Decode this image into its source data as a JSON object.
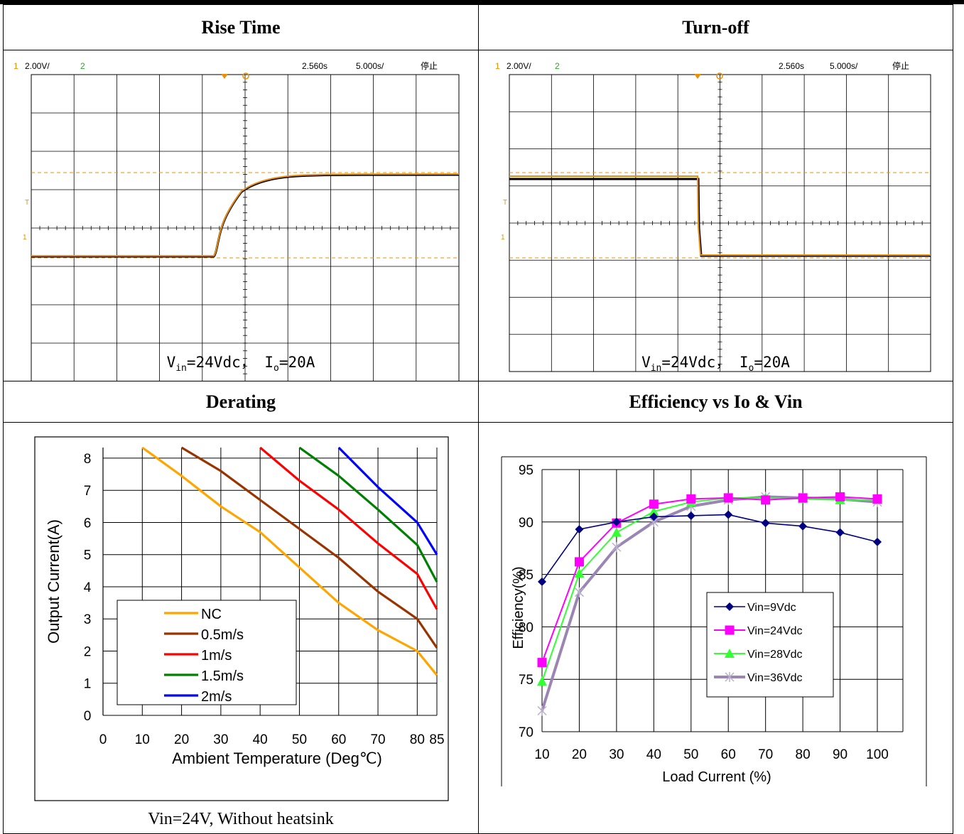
{
  "headers": {
    "rise_time": "Rise Time",
    "turn_off": "Turn-off",
    "derating": "Derating",
    "efficiency": "Efficiency vs Io & Vin"
  },
  "scope": {
    "ch1_label": "1",
    "ch1_scale": "2.00V/",
    "ch2_label": "2",
    "time_offset": "2.560s",
    "time_scale": "5.000s/",
    "status": "停止",
    "trigger_marker": "T",
    "ground_marker": "1"
  },
  "rise_caption": {
    "v": "V",
    "v_sub": "in",
    "v_val": "=24Vdc， I",
    "i_sub": "o",
    "i_val": "=20A"
  },
  "off_caption": {
    "v": "V",
    "v_sub": "in",
    "v_val": "=24Vdc， I",
    "i_sub": "o",
    "i_val": "=20A"
  },
  "derating_caption": "Vin=24V, Without heatsink",
  "colors": {
    "trace_orange": "#e8900a",
    "nc": "#ffa500",
    "s05": "#993300",
    "s1": "#ff0000",
    "s15": "#008000",
    "s2": "#0000ff",
    "v9": "#000080",
    "v24": "#ff00ff",
    "v28": "#33ff33",
    "v36": "#9a85b5"
  },
  "chart_data": [
    {
      "type": "line",
      "title": "Derating",
      "xlabel": "Ambient Temperature (Deg℃)",
      "ylabel": "Output Current(A)",
      "x_ticks": [
        0,
        10,
        20,
        30,
        40,
        50,
        60,
        70,
        80,
        85
      ],
      "y_ticks": [
        0,
        1,
        2,
        3,
        4,
        5,
        6,
        7,
        8
      ],
      "xlim": [
        0,
        85
      ],
      "ylim": [
        0,
        8.33
      ],
      "grid": true,
      "legend": "bottom-left",
      "series": [
        {
          "name": "NC",
          "x": [
            10,
            20,
            30,
            40,
            50,
            60,
            70,
            80,
            85
          ],
          "y": [
            8.33,
            7.45,
            6.5,
            5.7,
            4.6,
            3.5,
            2.65,
            2.0,
            1.25
          ]
        },
        {
          "name": "0.5m/s",
          "x": [
            20,
            30,
            40,
            50,
            60,
            70,
            80,
            85
          ],
          "y": [
            8.33,
            7.6,
            6.7,
            5.8,
            4.9,
            3.85,
            3.0,
            2.1
          ]
        },
        {
          "name": "1m/s",
          "x": [
            40,
            50,
            60,
            70,
            80,
            85
          ],
          "y": [
            8.33,
            7.3,
            6.4,
            5.35,
            4.4,
            3.3
          ]
        },
        {
          "name": "1.5m/s",
          "x": [
            50,
            60,
            70,
            80,
            85
          ],
          "y": [
            8.33,
            7.45,
            6.4,
            5.3,
            4.15
          ]
        },
        {
          "name": "2m/s",
          "x": [
            60,
            70,
            80,
            85
          ],
          "y": [
            8.33,
            7.1,
            6.0,
            5.0
          ]
        }
      ]
    },
    {
      "type": "line",
      "title": "Efficiency vs Io & Vin",
      "xlabel": "Load Current (%)",
      "ylabel": "Efficiency(%)",
      "x": [
        10,
        20,
        30,
        40,
        50,
        60,
        70,
        80,
        90,
        100
      ],
      "y_ticks": [
        70,
        75,
        80,
        85,
        90,
        95
      ],
      "ylim": [
        70,
        95
      ],
      "grid": true,
      "legend": "center-right",
      "series": [
        {
          "name": "Vin=9Vdc",
          "values": [
            84.3,
            89.3,
            90.0,
            90.5,
            90.6,
            90.7,
            89.9,
            89.6,
            89.0,
            88.1
          ]
        },
        {
          "name": "Vin=24Vdc",
          "values": [
            76.6,
            86.2,
            89.9,
            91.7,
            92.2,
            92.3,
            92.1,
            92.3,
            92.4,
            92.2
          ]
        },
        {
          "name": "Vin=28Vdc",
          "values": [
            74.8,
            85.1,
            89.0,
            91.0,
            91.9,
            92.3,
            92.3,
            92.2,
            92.1,
            92.1
          ]
        },
        {
          "name": "Vin=36Vdc",
          "values": [
            72.0,
            83.3,
            87.6,
            90.0,
            91.5,
            92.1,
            92.4,
            92.3,
            92.2,
            91.9
          ]
        }
      ]
    }
  ]
}
